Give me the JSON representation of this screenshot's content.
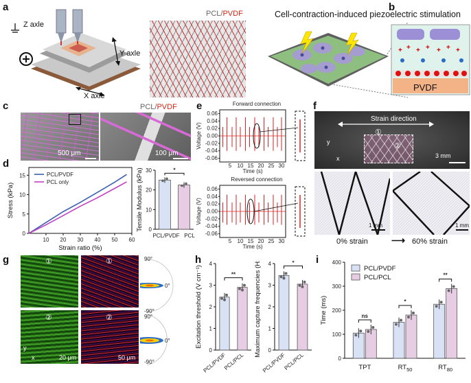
{
  "panel_labels": {
    "a": "a",
    "b": "b",
    "c": "c",
    "d": "d",
    "e": "e",
    "f": "f",
    "g": "g",
    "h": "h",
    "i": "i"
  },
  "a": {
    "z_axis": "Z axle",
    "y_axis": "Y axle",
    "x_axis": "X axle",
    "material_pcl": "PCL/",
    "material_pvdf": "PVDF",
    "plus": "⊕"
  },
  "b": {
    "title": "Cell-contraction-induced piezoelectric stimulation",
    "pvdf": "PVDF"
  },
  "c": {
    "material_pcl": "PCL/",
    "material_pvdf": "PVDF",
    "scale_left": "500 μm",
    "scale_right": "100 μm"
  },
  "d": {
    "stress_chart": {
      "type": "line",
      "xlabel": "Strain ratio (%)",
      "ylabel": "Stress (kPa)",
      "xlim": [
        0,
        60
      ],
      "ylim": [
        0,
        17
      ],
      "xticks": [
        10,
        20,
        30,
        40,
        50,
        60
      ],
      "yticks": [
        0,
        5,
        10,
        15
      ],
      "series": [
        {
          "name": "PCL/PVDF",
          "color": "#3a5fb0",
          "x": [
            0,
            10,
            20,
            30,
            40,
            50,
            57
          ],
          "y": [
            0,
            2.8,
            5.6,
            8.0,
            10.6,
            13.2,
            15.2
          ]
        },
        {
          "name": "PCL only",
          "color": "#c040c0",
          "x": [
            0,
            10,
            20,
            30,
            40,
            50,
            57
          ],
          "y": [
            0,
            2.2,
            4.6,
            7.0,
            9.2,
            11.6,
            13.3
          ]
        }
      ]
    },
    "modulus_chart": {
      "type": "bar",
      "ylabel": "Tensile Modulus (kPa)",
      "categories": [
        "PCL/PVDF",
        "PCL"
      ],
      "values": [
        25,
        22.5
      ],
      "ylim": [
        0,
        30
      ],
      "yticks": [
        0,
        10,
        20,
        30
      ],
      "colors": [
        "#d9e1f5",
        "#e6cde3"
      ],
      "sig": "*"
    }
  },
  "e": {
    "top": {
      "title": "Forward connection",
      "xlabel": "Time (s)",
      "ylabel": "Voltage (V)"
    },
    "bottom": {
      "title": "Reversed connection",
      "xlabel": "Time (s)",
      "ylabel": "Voltage (V)"
    },
    "xticks": [
      5,
      10,
      15,
      20,
      25,
      30
    ],
    "yticks": [
      "0.06",
      "0.04",
      "0.02",
      "0.00",
      "-0.02",
      "-0.04",
      "-0.06"
    ],
    "spike_times": [
      1.5,
      3.5,
      6,
      8,
      10,
      12.5,
      14.5,
      17,
      19,
      21.5,
      23.5,
      26,
      28,
      30
    ]
  },
  "f": {
    "strain_direction": "Strain direction",
    "scale_top": "3 mm",
    "scale_bl": "1 mm",
    "scale_br": "1 mm",
    "strain0": "0% strain",
    "strain60": "60% strain",
    "arrow": "⟶",
    "region1": "①",
    "region2": "②",
    "y": "y",
    "x": "x"
  },
  "g": {
    "r1": "①",
    "r2": "②",
    "scale_left": "20 μm",
    "scale_right": "50 μm",
    "angles": [
      "90°",
      "0°",
      "-90°",
      "90°",
      "0°",
      "-90°"
    ],
    "y": "y",
    "x": "x"
  },
  "h": {
    "excitation": {
      "type": "bar",
      "ylabel": "Excitation threshold (V cm⁻¹)",
      "categories": [
        "PCL/PVDF",
        "PCL/PCL"
      ],
      "values": [
        2.45,
        2.9
      ],
      "ylim": [
        0,
        4
      ],
      "yticks": [
        0,
        1,
        2,
        3,
        4
      ],
      "sig": "**"
    },
    "capture": {
      "type": "bar",
      "ylabel": "Maximum capture frequencies (Hz)",
      "categories": [
        "PCL/PVDF",
        "PCL/PCL"
      ],
      "values": [
        3.45,
        3.05
      ],
      "ylim": [
        0,
        4
      ],
      "yticks": [
        0,
        1,
        2,
        3,
        4
      ],
      "sig": "*"
    }
  },
  "i": {
    "chart": {
      "type": "bar",
      "ylabel": "Time (ms)",
      "categories": [
        "TPT",
        "RT50",
        "RT80"
      ],
      "category_main": [
        "TPT",
        "RT",
        "RT"
      ],
      "category_sub": [
        "",
        "50",
        "80"
      ],
      "series": [
        {
          "name": "PCL/PVDF",
          "values": [
            105,
            150,
            225
          ],
          "color": "#d9e1f5"
        },
        {
          "name": "PCL/PCL",
          "values": [
            120,
            180,
            290
          ],
          "color": "#e6cde3"
        }
      ],
      "ylim": [
        0,
        400
      ],
      "yticks": [
        0,
        100,
        200,
        300,
        400
      ],
      "sig": [
        "ns",
        "*",
        "**"
      ]
    }
  }
}
